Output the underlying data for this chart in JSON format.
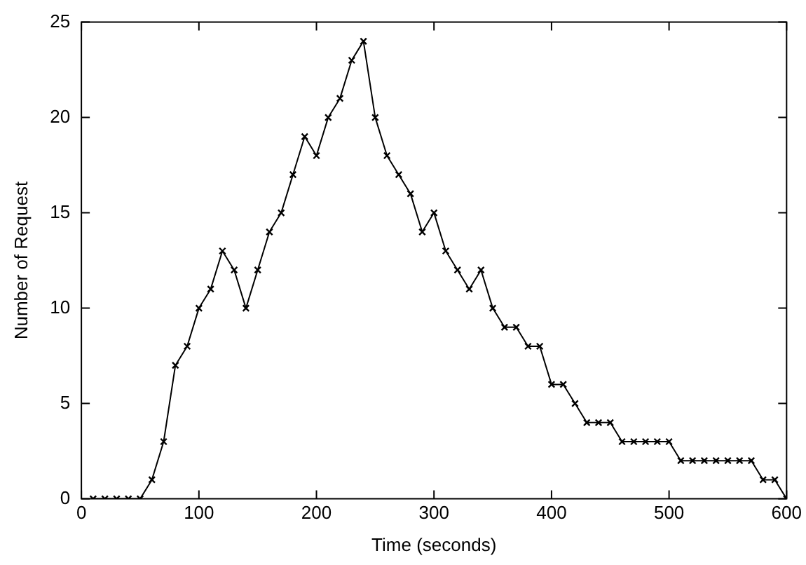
{
  "chart_data": {
    "type": "line",
    "xlabel": "Time (seconds)",
    "ylabel": "Number of Request",
    "x": [
      10,
      20,
      30,
      40,
      50,
      60,
      70,
      80,
      90,
      100,
      110,
      120,
      130,
      140,
      150,
      160,
      170,
      180,
      190,
      200,
      210,
      220,
      230,
      240,
      250,
      260,
      270,
      280,
      290,
      300,
      310,
      320,
      330,
      340,
      350,
      360,
      370,
      380,
      390,
      400,
      410,
      420,
      430,
      440,
      450,
      460,
      470,
      480,
      490,
      500,
      510,
      520,
      530,
      540,
      550,
      560,
      570,
      580,
      590,
      600
    ],
    "series": [
      {
        "color": "#000000",
        "values": [
          0,
          0,
          0,
          0,
          0,
          1,
          3,
          7,
          8,
          10,
          11,
          13,
          12,
          10,
          12,
          14,
          15,
          17,
          19,
          18,
          20,
          21,
          23,
          24,
          20,
          18,
          17,
          16,
          14,
          15,
          13,
          12,
          11,
          12,
          10,
          9,
          9,
          8,
          8,
          6,
          6,
          5,
          4,
          4,
          4,
          3,
          3,
          3,
          3,
          3,
          2,
          2,
          2,
          2,
          2,
          2,
          2,
          1,
          1,
          0
        ]
      }
    ],
    "xlim": [
      0,
      600
    ],
    "xticks": [
      0,
      100,
      200,
      300,
      400,
      500,
      600
    ],
    "ylim": [
      0,
      25
    ],
    "yticks": [
      0,
      5,
      10,
      15,
      20,
      25
    ],
    "grid": false,
    "legend": false,
    "marker": "cross",
    "line_style": "solid"
  }
}
